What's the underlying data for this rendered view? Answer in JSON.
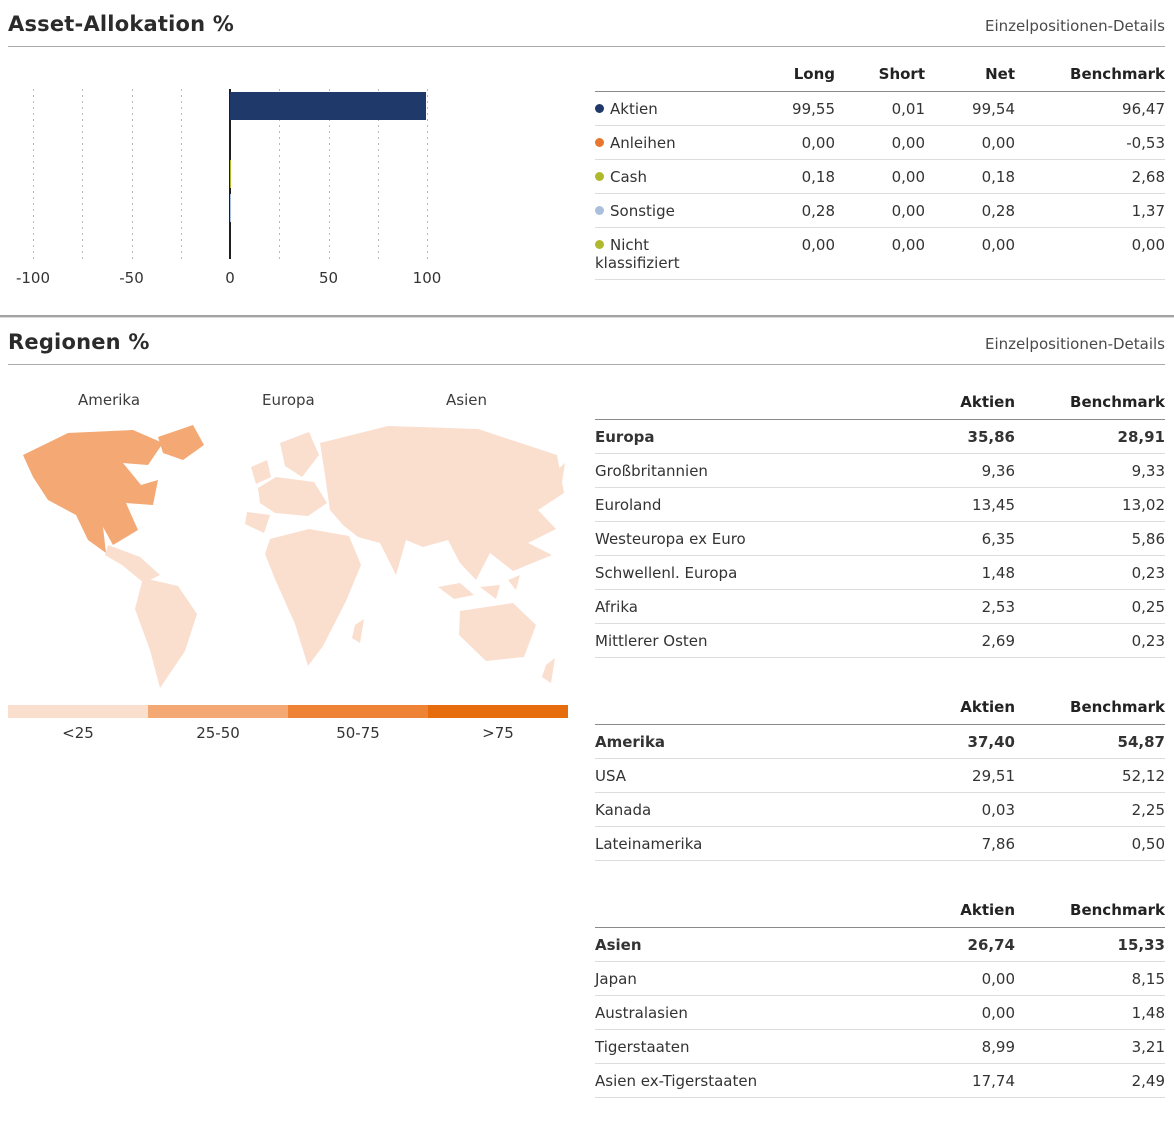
{
  "allocation": {
    "title": "Asset-Allokation %",
    "details_link": "Einzelpositionen-Details",
    "col_headers": [
      "Long",
      "Short",
      "Net",
      "Benchmark"
    ],
    "rows": [
      {
        "label": "Aktien",
        "color": "#1f3a6a",
        "values": [
          "99,55",
          "0,01",
          "99,54",
          "96,47"
        ]
      },
      {
        "label": "Anleihen",
        "color": "#e8762c",
        "values": [
          "0,00",
          "0,00",
          "0,00",
          "-0,53"
        ]
      },
      {
        "label": "Cash",
        "color": "#b0b82d",
        "values": [
          "0,18",
          "0,00",
          "0,18",
          "2,68"
        ]
      },
      {
        "label": "Sonstige",
        "color": "#a9bfdb",
        "values": [
          "0,28",
          "0,00",
          "0,28",
          "1,37"
        ]
      },
      {
        "label": "Nicht klassifiziert",
        "color": "#b0b82d",
        "values": [
          "0,00",
          "0,00",
          "0,00",
          "0,00"
        ]
      }
    ]
  },
  "regions": {
    "title": "Regionen %",
    "details_link": "Einzelpositionen-Details",
    "col_headers": [
      "Aktien",
      "Benchmark"
    ],
    "map_labels": [
      "Amerika",
      "Europa",
      "Asien"
    ],
    "map_fill": {
      "north_america": "#f4a873",
      "other_regions": "#fadece"
    },
    "legend": [
      {
        "label": "<25",
        "color": "#fadece"
      },
      {
        "label": "25-50",
        "color": "#f4a873"
      },
      {
        "label": "50-75",
        "color": "#ee8336"
      },
      {
        "label": ">75",
        "color": "#e76c0e"
      }
    ],
    "groups": [
      {
        "rows": [
          {
            "label": "Europa",
            "values": [
              "35,86",
              "28,91"
            ]
          },
          {
            "label": "Großbritannien",
            "values": [
              "9,36",
              "9,33"
            ]
          },
          {
            "label": "Euroland",
            "values": [
              "13,45",
              "13,02"
            ]
          },
          {
            "label": "Westeuropa ex Euro",
            "values": [
              "6,35",
              "5,86"
            ]
          },
          {
            "label": "Schwellenl. Europa",
            "values": [
              "1,48",
              "0,23"
            ]
          },
          {
            "label": "Afrika",
            "values": [
              "2,53",
              "0,25"
            ]
          },
          {
            "label": "Mittlerer Osten",
            "values": [
              "2,69",
              "0,23"
            ]
          }
        ]
      },
      {
        "rows": [
          {
            "label": "Amerika",
            "values": [
              "37,40",
              "54,87"
            ]
          },
          {
            "label": "USA",
            "values": [
              "29,51",
              "52,12"
            ]
          },
          {
            "label": "Kanada",
            "values": [
              "0,03",
              "2,25"
            ]
          },
          {
            "label": "Lateinamerika",
            "values": [
              "7,86",
              "0,50"
            ]
          }
        ]
      },
      {
        "rows": [
          {
            "label": "Asien",
            "values": [
              "26,74",
              "15,33"
            ]
          },
          {
            "label": "Japan",
            "values": [
              "0,00",
              "8,15"
            ]
          },
          {
            "label": "Australasien",
            "values": [
              "0,00",
              "1,48"
            ]
          },
          {
            "label": "Tigerstaaten",
            "values": [
              "8,99",
              "3,21"
            ]
          },
          {
            "label": "Asien ex-Tigerstaaten",
            "values": [
              "17,74",
              "2,49"
            ]
          }
        ]
      }
    ]
  },
  "chart_data": [
    {
      "type": "bar",
      "orientation": "horizontal",
      "title": "Asset-Allokation %",
      "categories": [
        "Aktien",
        "Anleihen",
        "Cash",
        "Sonstige",
        "Nicht klassifiziert"
      ],
      "series": [
        {
          "name": "Long",
          "values": [
            99.55,
            0.0,
            0.18,
            0.28,
            0.0
          ]
        },
        {
          "name": "Short",
          "values": [
            0.01,
            0.0,
            0.0,
            0.0,
            0.0
          ]
        },
        {
          "name": "Net",
          "values": [
            99.54,
            0.0,
            0.18,
            0.28,
            0.0
          ]
        },
        {
          "name": "Benchmark",
          "values": [
            96.47,
            -0.53,
            2.68,
            1.37,
            0.0
          ]
        }
      ],
      "plotted_series": "Net",
      "xlim": [
        -100,
        100
      ],
      "xticks": [
        -100,
        -50,
        0,
        50,
        100
      ],
      "gridline_step": 25,
      "grid": true,
      "colors": {
        "Aktien": "#1f3a6a",
        "Anleihen": "#e8762c",
        "Cash": "#b0b82d",
        "Sonstige": "#a9bfdb",
        "Nicht klassifiziert": "#b0b82d"
      }
    },
    {
      "type": "heatmap",
      "subtype": "world-choropleth",
      "title": "Regionen %",
      "value_label": "Aktien %",
      "buckets": [
        "<25",
        "25-50",
        "50-75",
        ">75"
      ],
      "bucket_colors": [
        "#fadece",
        "#f4a873",
        "#ee8336",
        "#e76c0e"
      ],
      "legend_position": "bottom",
      "regions": [
        {
          "name": "Europa",
          "aktien": 35.86,
          "benchmark": 28.91,
          "sub": [
            {
              "name": "Großbritannien",
              "aktien": 9.36,
              "benchmark": 9.33
            },
            {
              "name": "Euroland",
              "aktien": 13.45,
              "benchmark": 13.02
            },
            {
              "name": "Westeuropa ex Euro",
              "aktien": 6.35,
              "benchmark": 5.86
            },
            {
              "name": "Schwellenl. Europa",
              "aktien": 1.48,
              "benchmark": 0.23
            },
            {
              "name": "Afrika",
              "aktien": 2.53,
              "benchmark": 0.25
            },
            {
              "name": "Mittlerer Osten",
              "aktien": 2.69,
              "benchmark": 0.23
            }
          ]
        },
        {
          "name": "Amerika",
          "aktien": 37.4,
          "benchmark": 54.87,
          "sub": [
            {
              "name": "USA",
              "aktien": 29.51,
              "benchmark": 52.12
            },
            {
              "name": "Kanada",
              "aktien": 0.03,
              "benchmark": 2.25
            },
            {
              "name": "Lateinamerika",
              "aktien": 7.86,
              "benchmark": 0.5
            }
          ]
        },
        {
          "name": "Asien",
          "aktien": 26.74,
          "benchmark": 15.33,
          "sub": [
            {
              "name": "Japan",
              "aktien": 0.0,
              "benchmark": 8.15
            },
            {
              "name": "Australasien",
              "aktien": 0.0,
              "benchmark": 1.48
            },
            {
              "name": "Tigerstaaten",
              "aktien": 8.99,
              "benchmark": 3.21
            },
            {
              "name": "Asien ex-Tigerstaaten",
              "aktien": 17.74,
              "benchmark": 2.49
            }
          ]
        }
      ]
    }
  ]
}
